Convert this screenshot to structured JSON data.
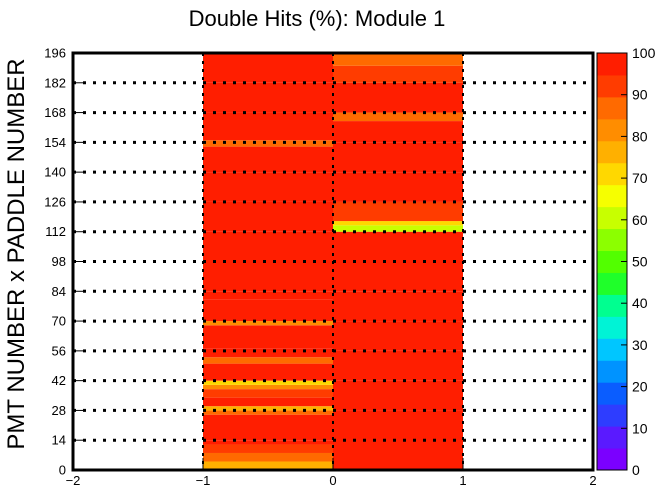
{
  "chart_data": {
    "type": "heatmap",
    "title": "Double Hits (%): Module 1",
    "xlabel": "",
    "ylabel": "PMT NUMBER x PADDLE NUMBER",
    "xlim": [
      -2,
      2
    ],
    "ylim": [
      0,
      196
    ],
    "zlim": [
      0,
      100
    ],
    "x_ticks": [
      "−2",
      "−1",
      "0",
      "1",
      "2"
    ],
    "y_ticks": [
      "0",
      "14",
      "28",
      "42",
      "56",
      "70",
      "84",
      "98",
      "112",
      "126",
      "140",
      "154",
      "168",
      "182",
      "196"
    ],
    "z_ticks": [
      "0",
      "10",
      "20",
      "30",
      "40",
      "50",
      "60",
      "70",
      "80",
      "90",
      "100"
    ],
    "grid": true,
    "palette": [
      "#7b00ff",
      "#5a1aff",
      "#2e3dff",
      "#0a5dff",
      "#0093ff",
      "#00c6ff",
      "#00f3d6",
      "#00ff90",
      "#1fff2a",
      "#52ff00",
      "#8cff00",
      "#c8ff00",
      "#f6ff00",
      "#ffd800",
      "#ffb000",
      "#ff8d00",
      "#ff6a00",
      "#ff3c00",
      "#ff1e00"
    ],
    "columns": [
      {
        "x_range": [
          -1,
          0
        ],
        "rows": [
          {
            "y": [
              0,
              4
            ],
            "value": 75
          },
          {
            "y": [
              4,
              8
            ],
            "value": 86
          },
          {
            "y": [
              8,
              12
            ],
            "value": 92
          },
          {
            "y": [
              12,
              14
            ],
            "value": 96
          },
          {
            "y": [
              14,
              26
            ],
            "value": 99
          },
          {
            "y": [
              26,
              28
            ],
            "value": 88
          },
          {
            "y": [
              28,
              30
            ],
            "value": 78
          },
          {
            "y": [
              30,
              34
            ],
            "value": 95
          },
          {
            "y": [
              34,
              38
            ],
            "value": 93
          },
          {
            "y": [
              38,
              40
            ],
            "value": 80
          },
          {
            "y": [
              40,
              42
            ],
            "value": 70
          },
          {
            "y": [
              42,
              50
            ],
            "value": 97
          },
          {
            "y": [
              50,
              53
            ],
            "value": 87
          },
          {
            "y": [
              53,
              57
            ],
            "value": 98
          },
          {
            "y": [
              57,
              68
            ],
            "value": 99
          },
          {
            "y": [
              68,
              70
            ],
            "value": 80
          },
          {
            "y": [
              70,
              80
            ],
            "value": 99
          },
          {
            "y": [
              80,
              84
            ],
            "value": 96
          },
          {
            "y": [
              84,
              98
            ],
            "value": 99
          },
          {
            "y": [
              98,
              112
            ],
            "value": 98
          },
          {
            "y": [
              112,
              126
            ],
            "value": 99
          },
          {
            "y": [
              126,
              140
            ],
            "value": 97
          },
          {
            "y": [
              140,
              152
            ],
            "value": 99
          },
          {
            "y": [
              152,
              155
            ],
            "value": 85
          },
          {
            "y": [
              155,
              168
            ],
            "value": 99
          },
          {
            "y": [
              168,
              182
            ],
            "value": 98
          },
          {
            "y": [
              182,
              196
            ],
            "value": 97
          }
        ]
      },
      {
        "x_range": [
          0,
          1
        ],
        "rows": [
          {
            "y": [
              0,
              28
            ],
            "value": 95
          },
          {
            "y": [
              28,
              42
            ],
            "value": 97
          },
          {
            "y": [
              42,
              56
            ],
            "value": 99
          },
          {
            "y": [
              56,
              70
            ],
            "value": 99
          },
          {
            "y": [
              70,
              84
            ],
            "value": 98
          },
          {
            "y": [
              84,
              98
            ],
            "value": 99
          },
          {
            "y": [
              98,
              112
            ],
            "value": 97
          },
          {
            "y": [
              112,
              115
            ],
            "value": 60
          },
          {
            "y": [
              115,
              117
            ],
            "value": 70
          },
          {
            "y": [
              117,
              126
            ],
            "value": 92
          },
          {
            "y": [
              126,
              140
            ],
            "value": 97
          },
          {
            "y": [
              140,
              154
            ],
            "value": 98
          },
          {
            "y": [
              154,
              164
            ],
            "value": 96
          },
          {
            "y": [
              164,
              168
            ],
            "value": 88
          },
          {
            "y": [
              168,
              182
            ],
            "value": 97
          },
          {
            "y": [
              182,
              190
            ],
            "value": 94
          },
          {
            "y": [
              190,
              196
            ],
            "value": 88
          }
        ]
      }
    ]
  }
}
